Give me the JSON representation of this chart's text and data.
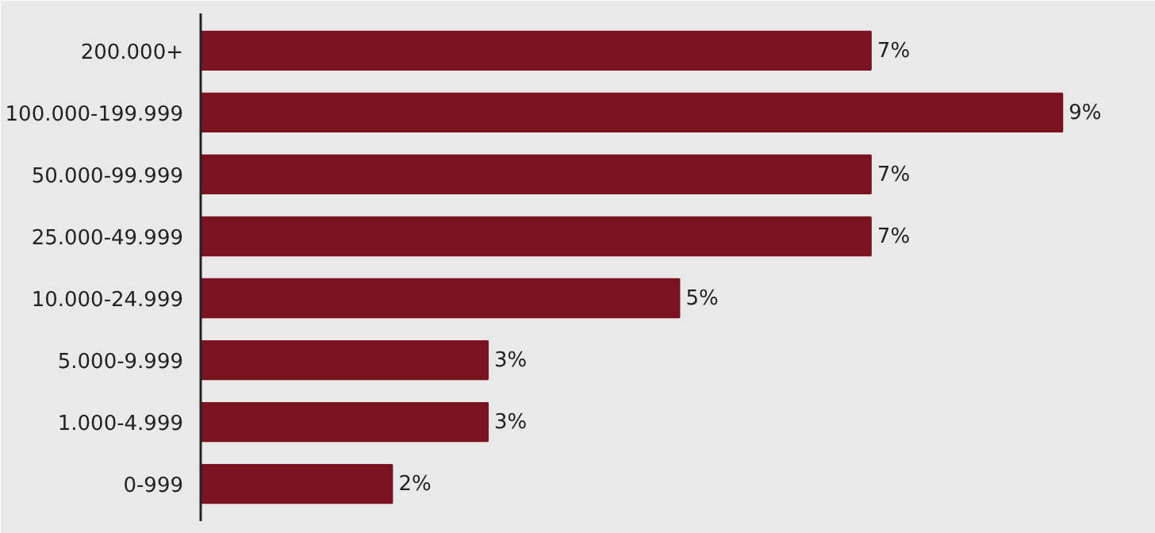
{
  "chart_data": {
    "type": "bar",
    "orientation": "horizontal",
    "categories": [
      "200.000+",
      "100.000-199.999",
      "50.000-99.999",
      "25.000-49.999",
      "10.000-24.999",
      "5.000-9.999",
      "1.000-4.999",
      "0-999"
    ],
    "values": [
      7,
      9,
      7,
      7,
      5,
      3,
      3,
      2
    ],
    "value_labels": [
      "7%",
      "9%",
      "7%",
      "7%",
      "5%",
      "3%",
      "3%",
      "2%"
    ],
    "color": "#7b121f"
  }
}
